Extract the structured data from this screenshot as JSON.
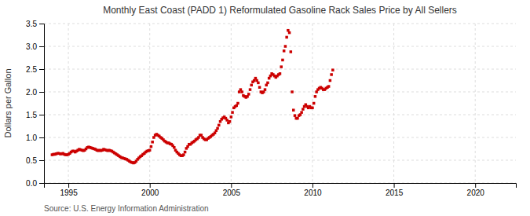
{
  "chart_data": {
    "type": "scatter",
    "title": "Monthly East Coast (PADD 1) Reformulated Gasoline Rack Sales Price by All Sellers",
    "ylabel": "Dollars per Gallon",
    "annotations": [
      "Source: U.S. Energy Information Administration"
    ],
    "color": "#cc0000",
    "marker": "square",
    "grid": true,
    "xlim": [
      1993.5,
      2022.5
    ],
    "xticks": [
      1995,
      2000,
      2005,
      2010,
      2015,
      2020
    ],
    "ylim": [
      0.0,
      3.5
    ],
    "yticks": [
      {
        "value": 0.0,
        "label": "0.0"
      },
      0.5,
      {
        "value": 1.0,
        "label": "1.0"
      },
      1.5,
      {
        "value": 2.0,
        "label": "2.0"
      },
      2.5,
      {
        "value": 3.0,
        "label": "3.0"
      },
      3.5
    ],
    "x": [
      1994.0,
      1994.083,
      1994.167,
      1994.25,
      1994.333,
      1994.417,
      1994.5,
      1994.583,
      1994.667,
      1994.75,
      1994.833,
      1994.917,
      1995.0,
      1995.083,
      1995.167,
      1995.25,
      1995.333,
      1995.417,
      1995.5,
      1995.583,
      1995.667,
      1995.75,
      1995.833,
      1995.917,
      1996.0,
      1996.083,
      1996.167,
      1996.25,
      1996.333,
      1996.417,
      1996.5,
      1996.583,
      1996.667,
      1996.75,
      1996.833,
      1996.917,
      1997.0,
      1997.083,
      1997.167,
      1997.25,
      1997.333,
      1997.417,
      1997.5,
      1997.583,
      1997.667,
      1997.75,
      1997.833,
      1997.917,
      1998.0,
      1998.083,
      1998.167,
      1998.25,
      1998.333,
      1998.417,
      1998.5,
      1998.583,
      1998.667,
      1998.75,
      1998.833,
      1998.917,
      1999.0,
      1999.083,
      1999.167,
      1999.25,
      1999.333,
      1999.417,
      1999.5,
      1999.583,
      1999.667,
      1999.75,
      1999.833,
      1999.917,
      2000.0,
      2000.083,
      2000.167,
      2000.25,
      2000.333,
      2000.417,
      2000.5,
      2000.583,
      2000.667,
      2000.75,
      2000.833,
      2000.917,
      2001.0,
      2001.083,
      2001.167,
      2001.25,
      2001.333,
      2001.417,
      2001.5,
      2001.583,
      2001.667,
      2001.75,
      2001.833,
      2001.917,
      2002.0,
      2002.083,
      2002.167,
      2002.25,
      2002.333,
      2002.417,
      2002.5,
      2002.583,
      2002.667,
      2002.75,
      2002.833,
      2002.917,
      2003.0,
      2003.083,
      2003.167,
      2003.25,
      2003.333,
      2003.417,
      2003.5,
      2003.583,
      2003.667,
      2003.75,
      2003.833,
      2003.917,
      2004.0,
      2004.083,
      2004.167,
      2004.25,
      2004.333,
      2004.417,
      2004.5,
      2004.583,
      2004.667,
      2004.75,
      2004.833,
      2004.917,
      2005.0,
      2005.083,
      2005.167,
      2005.25,
      2005.333,
      2005.417,
      2005.5,
      2005.583,
      2005.667,
      2005.75,
      2005.833,
      2005.917,
      2006.0,
      2006.083,
      2006.167,
      2006.25,
      2006.333,
      2006.417,
      2006.5,
      2006.583,
      2006.667,
      2006.75,
      2006.833,
      2006.917,
      2007.0,
      2007.083,
      2007.167,
      2007.25,
      2007.333,
      2007.417,
      2007.5,
      2007.583,
      2007.667,
      2007.75,
      2007.833,
      2007.917,
      2008.0,
      2008.083,
      2008.167,
      2008.25,
      2008.333,
      2008.417,
      2008.5,
      2008.583,
      2008.667,
      2008.75,
      2008.833,
      2008.917,
      2009.0,
      2009.083,
      2009.167,
      2009.25,
      2009.333,
      2009.417,
      2009.5,
      2009.583,
      2009.667,
      2009.75,
      2009.833,
      2009.917,
      2010.0,
      2010.083,
      2010.167,
      2010.25,
      2010.333,
      2010.417,
      2010.5,
      2010.583,
      2010.667,
      2010.75,
      2010.833,
      2010.917,
      2011.0,
      2011.083,
      2011.167,
      2011.25
    ],
    "values": [
      0.62,
      0.63,
      0.63,
      0.64,
      0.65,
      0.65,
      0.64,
      0.64,
      0.65,
      0.63,
      0.62,
      0.62,
      0.63,
      0.65,
      0.68,
      0.7,
      0.7,
      0.68,
      0.7,
      0.72,
      0.74,
      0.73,
      0.72,
      0.71,
      0.72,
      0.75,
      0.78,
      0.79,
      0.78,
      0.77,
      0.76,
      0.75,
      0.74,
      0.72,
      0.71,
      0.72,
      0.71,
      0.72,
      0.74,
      0.73,
      0.72,
      0.71,
      0.72,
      0.71,
      0.7,
      0.68,
      0.66,
      0.64,
      0.62,
      0.6,
      0.58,
      0.56,
      0.55,
      0.54,
      0.53,
      0.52,
      0.5,
      0.48,
      0.46,
      0.45,
      0.44,
      0.45,
      0.48,
      0.52,
      0.55,
      0.58,
      0.6,
      0.63,
      0.65,
      0.68,
      0.7,
      0.71,
      0.72,
      0.8,
      0.9,
      1.0,
      1.05,
      1.07,
      1.05,
      1.03,
      1.0,
      0.98,
      0.95,
      0.92,
      0.9,
      0.88,
      0.88,
      0.86,
      0.85,
      0.82,
      0.78,
      0.72,
      0.68,
      0.65,
      0.62,
      0.6,
      0.6,
      0.62,
      0.68,
      0.76,
      0.8,
      0.85,
      0.85,
      0.88,
      0.9,
      0.92,
      0.95,
      0.97,
      1.0,
      1.05,
      1.05,
      1.0,
      0.97,
      0.95,
      0.95,
      0.98,
      1.0,
      1.02,
      1.05,
      1.07,
      1.1,
      1.15,
      1.2,
      1.27,
      1.35,
      1.4,
      1.43,
      1.45,
      1.42,
      1.38,
      1.32,
      1.35,
      1.45,
      1.55,
      1.65,
      1.68,
      1.7,
      1.75,
      2.0,
      2.05,
      2.0,
      1.92,
      1.9,
      1.88,
      1.9,
      1.95,
      2.05,
      2.15,
      2.22,
      2.25,
      2.3,
      2.25,
      2.2,
      2.1,
      2.0,
      1.98,
      2.0,
      2.05,
      2.15,
      2.2,
      2.3,
      2.35,
      2.4,
      2.38,
      2.35,
      2.32,
      2.35,
      2.38,
      2.4,
      2.55,
      2.7,
      2.9,
      3.0,
      3.2,
      3.35,
      3.3,
      2.88,
      2.0,
      1.6,
      1.48,
      1.42,
      1.42,
      1.48,
      1.5,
      1.55,
      1.62,
      1.68,
      1.72,
      1.68,
      1.65,
      1.68,
      1.65,
      1.65,
      1.75,
      1.9,
      2.0,
      2.05,
      2.08,
      2.1,
      2.08,
      2.05,
      2.05,
      2.08,
      2.1,
      2.12,
      2.25,
      2.38,
      2.48
    ]
  }
}
